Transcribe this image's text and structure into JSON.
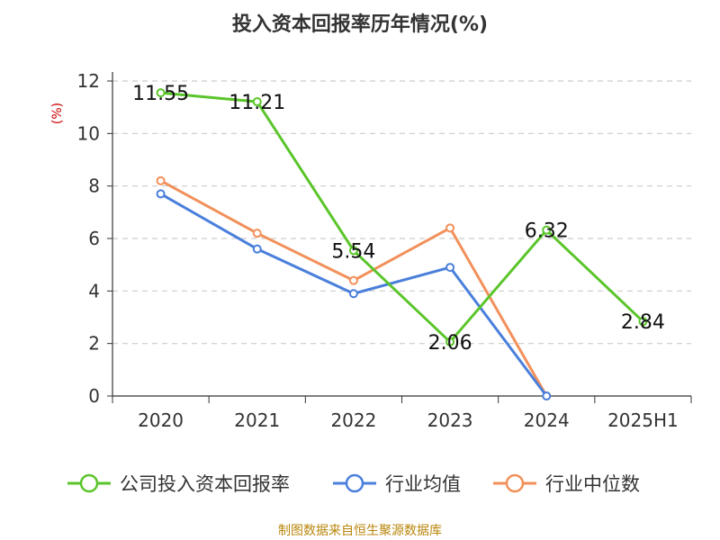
{
  "title": "投入资本回报率历年情况(%)",
  "source": "制图数据来自恒生聚源数据库",
  "colors": {
    "company": "#5ac52a",
    "industry_avg": "#4a7fdb",
    "industry_median": "#f2905a",
    "ylabel": "#cc0000",
    "source": "#b8860b",
    "grid": "#cccccc",
    "axis": "#333333"
  },
  "chart_data": {
    "type": "line",
    "title": "投入资本回报率历年情况(%)",
    "xlabel": "",
    "ylabel": "(%)",
    "categories": [
      "2020",
      "2021",
      "2022",
      "2023",
      "2024",
      "2025H1"
    ],
    "ylim": [
      0,
      12
    ],
    "yticks": [
      0,
      2,
      4,
      6,
      8,
      10,
      12
    ],
    "grid": "horizontal dashed",
    "legend_position": "bottom",
    "series": [
      {
        "name": "公司投入资本回报率",
        "color_key": "company",
        "values": [
          11.55,
          11.21,
          5.54,
          2.06,
          6.32,
          2.84
        ],
        "labels": [
          "11.55",
          "11.21",
          "5.54",
          "2.06",
          "6.32",
          "2.84"
        ]
      },
      {
        "name": "行业均值",
        "color_key": "industry_avg",
        "values": [
          7.7,
          5.6,
          3.9,
          4.9,
          0.0,
          null
        ]
      },
      {
        "name": "行业中位数",
        "color_key": "industry_median",
        "values": [
          8.2,
          6.2,
          4.4,
          6.4,
          0.0,
          null
        ]
      }
    ]
  }
}
